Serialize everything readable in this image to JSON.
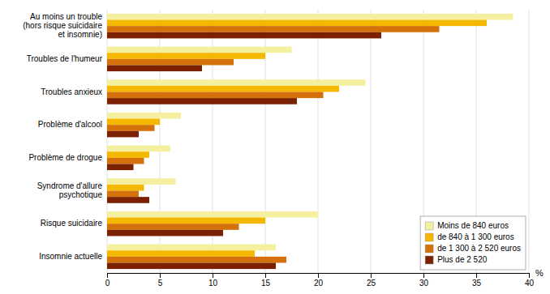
{
  "chart_data": {
    "type": "bar",
    "orientation": "horizontal",
    "categories": [
      "Au moins un trouble\n(hors risque suicidaire\net insomnie)",
      "Troubles de l'humeur",
      "Troubles anxieux",
      "Problème d'alcool",
      "Problème de drogue",
      "Syndrome d'allure\npsychotique",
      "Risque suicidaire",
      "Insomnie actuelle"
    ],
    "series": [
      {
        "name": "Moins de 840 euros",
        "color": "#F5F0A0",
        "values": [
          38.5,
          17.5,
          24.5,
          7.0,
          6.0,
          6.5,
          20.0,
          16.0
        ]
      },
      {
        "name": "de 840 à 1 300 euros",
        "color": "#F5B800",
        "values": [
          36.0,
          15.0,
          22.0,
          5.0,
          4.0,
          3.5,
          15.0,
          14.0
        ]
      },
      {
        "name": "de 1 300 à 2 520 euros",
        "color": "#D4710A",
        "values": [
          31.5,
          12.0,
          20.5,
          4.5,
          3.5,
          3.0,
          12.5,
          17.0
        ]
      },
      {
        "name": "Plus de 2 520",
        "color": "#7B2000",
        "values": [
          26.0,
          9.0,
          18.0,
          3.0,
          2.5,
          4.0,
          11.0,
          16.0
        ]
      }
    ],
    "xlabel": "%",
    "xlim": [
      0,
      40
    ],
    "xticks": [
      0,
      5,
      10,
      15,
      20,
      25,
      30,
      35,
      40
    ],
    "grid": true,
    "legend": "lower right"
  }
}
